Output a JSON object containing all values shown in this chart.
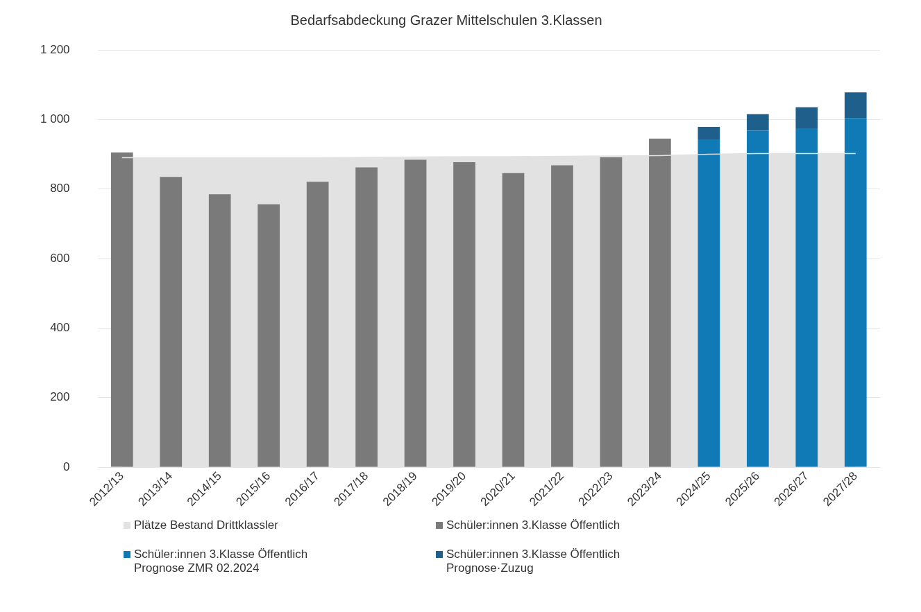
{
  "chart_data": {
    "type": "bar",
    "title": "Bedarfsabdeckung Grazer Mittelschulen 3.Klassen",
    "grid": "y",
    "legend": "bottom",
    "categories": [
      "2012/13",
      "2013/14",
      "2014/15",
      "2015/16",
      "2016/17",
      "2017/18",
      "2018/19",
      "2019/20",
      "2020/21",
      "2021/22",
      "2022/23",
      "2023/24",
      "2024/25",
      "2025/26",
      "2026/27",
      "2027/28"
    ],
    "ylim": [
      0,
      1200
    ],
    "yticks": [
      0,
      200,
      400,
      600,
      800,
      {
        "value": 1000,
        "label": "1 000"
      },
      {
        "value": 1200,
        "label": "1 200"
      }
    ],
    "series": [
      {
        "name": "Plätze Bestand Drittklassler",
        "type": "area",
        "color": "#e2e2e2",
        "values": [
          890,
          890,
          890,
          890,
          890,
          891,
          892,
          893,
          893,
          894,
          895,
          896,
          900,
          902,
          902,
          902
        ]
      },
      {
        "name": "Schüler:innen 3.Klasse Öffentlich",
        "color": "#7a7a7a",
        "values": [
          905,
          835,
          785,
          756,
          821,
          862,
          884,
          877,
          846,
          868,
          891,
          945,
          null,
          null,
          null,
          null
        ]
      },
      {
        "name": "Schüler:innen 3.Klasse Öffentlich Prognose ZMR 02.2024",
        "color": "#0f7ab5",
        "values": [
          null,
          null,
          null,
          null,
          null,
          null,
          null,
          null,
          null,
          null,
          null,
          null,
          943,
          968,
          975,
          1004
        ]
      },
      {
        "name": "Schüler:innen 3.Klasse Öffentlich Prognose·Zuzug",
        "color": "#1f5f8c",
        "base": [
          null,
          null,
          null,
          null,
          null,
          null,
          null,
          null,
          null,
          null,
          null,
          null,
          943,
          968,
          975,
          1004
        ],
        "values": [
          null,
          null,
          null,
          null,
          null,
          null,
          null,
          null,
          null,
          null,
          null,
          null,
          36,
          47,
          60,
          74
        ]
      }
    ]
  }
}
